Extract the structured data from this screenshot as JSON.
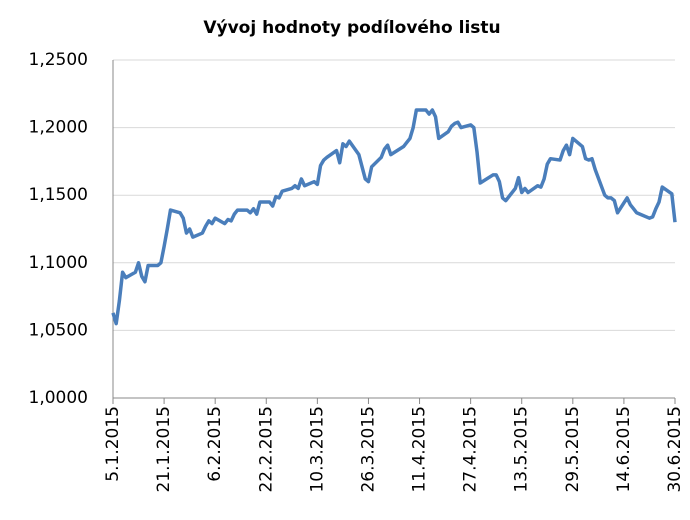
{
  "chart_data": {
    "type": "line",
    "title": "Vývoj hodnoty podílového listu",
    "x": [
      "2015-01-05",
      "2015-01-06",
      "2015-01-07",
      "2015-01-08",
      "2015-01-09",
      "2015-01-12",
      "2015-01-13",
      "2015-01-14",
      "2015-01-15",
      "2015-01-16",
      "2015-01-19",
      "2015-01-20",
      "2015-01-21",
      "2015-01-22",
      "2015-01-23",
      "2015-01-26",
      "2015-01-27",
      "2015-01-28",
      "2015-01-29",
      "2015-01-30",
      "2015-02-02",
      "2015-02-03",
      "2015-02-04",
      "2015-02-05",
      "2015-02-06",
      "2015-02-09",
      "2015-02-10",
      "2015-02-11",
      "2015-02-12",
      "2015-02-13",
      "2015-02-16",
      "2015-02-17",
      "2015-02-18",
      "2015-02-19",
      "2015-02-20",
      "2015-02-23",
      "2015-02-24",
      "2015-02-25",
      "2015-02-26",
      "2015-02-27",
      "2015-03-02",
      "2015-03-03",
      "2015-03-04",
      "2015-03-05",
      "2015-03-06",
      "2015-03-09",
      "2015-03-10",
      "2015-03-11",
      "2015-03-12",
      "2015-03-13",
      "2015-03-16",
      "2015-03-17",
      "2015-03-18",
      "2015-03-19",
      "2015-03-20",
      "2015-03-23",
      "2015-03-24",
      "2015-03-25",
      "2015-03-26",
      "2015-03-27",
      "2015-03-30",
      "2015-03-31",
      "2015-04-01",
      "2015-04-02",
      "2015-04-06",
      "2015-04-07",
      "2015-04-08",
      "2015-04-09",
      "2015-04-10",
      "2015-04-13",
      "2015-04-14",
      "2015-04-15",
      "2015-04-16",
      "2015-04-17",
      "2015-04-20",
      "2015-04-21",
      "2015-04-22",
      "2015-04-23",
      "2015-04-24",
      "2015-04-27",
      "2015-04-28",
      "2015-04-29",
      "2015-04-30",
      "2015-05-04",
      "2015-05-05",
      "2015-05-06",
      "2015-05-07",
      "2015-05-08",
      "2015-05-11",
      "2015-05-12",
      "2015-05-13",
      "2015-05-14",
      "2015-05-15",
      "2015-05-18",
      "2015-05-19",
      "2015-05-20",
      "2015-05-21",
      "2015-05-22",
      "2015-05-25",
      "2015-05-26",
      "2015-05-27",
      "2015-05-28",
      "2015-05-29",
      "2015-06-01",
      "2015-06-02",
      "2015-06-03",
      "2015-06-04",
      "2015-06-05",
      "2015-06-08",
      "2015-06-09",
      "2015-06-10",
      "2015-06-11",
      "2015-06-12",
      "2015-06-15",
      "2015-06-16",
      "2015-06-17",
      "2015-06-18",
      "2015-06-19",
      "2015-06-22",
      "2015-06-23",
      "2015-06-24",
      "2015-06-25",
      "2015-06-26",
      "2015-06-29",
      "2015-06-30"
    ],
    "series": [
      {
        "color": "#4a7ebb",
        "values": [
          1.063,
          1.055,
          1.072,
          1.093,
          1.089,
          1.093,
          1.1,
          1.09,
          1.086,
          1.098,
          1.098,
          1.1,
          1.112,
          1.125,
          1.139,
          1.137,
          1.133,
          1.122,
          1.125,
          1.119,
          1.122,
          1.127,
          1.131,
          1.129,
          1.133,
          1.129,
          1.132,
          1.131,
          1.136,
          1.139,
          1.139,
          1.137,
          1.14,
          1.136,
          1.145,
          1.145,
          1.142,
          1.149,
          1.148,
          1.153,
          1.155,
          1.157,
          1.155,
          1.162,
          1.157,
          1.16,
          1.158,
          1.172,
          1.176,
          1.178,
          1.183,
          1.174,
          1.188,
          1.186,
          1.19,
          1.18,
          1.171,
          1.162,
          1.16,
          1.171,
          1.178,
          1.184,
          1.187,
          1.18,
          1.186,
          1.189,
          1.192,
          1.2,
          1.213,
          1.213,
          1.21,
          1.213,
          1.208,
          1.192,
          1.197,
          1.201,
          1.203,
          1.204,
          1.2,
          1.202,
          1.2,
          1.182,
          1.159,
          1.165,
          1.165,
          1.16,
          1.148,
          1.146,
          1.155,
          1.163,
          1.152,
          1.155,
          1.152,
          1.157,
          1.156,
          1.162,
          1.173,
          1.177,
          1.176,
          1.183,
          1.187,
          1.18,
          1.192,
          1.186,
          1.177,
          1.176,
          1.177,
          1.169,
          1.15,
          1.148,
          1.148,
          1.146,
          1.137,
          1.148,
          1.143,
          1.14,
          1.137,
          1.136,
          1.133,
          1.134,
          1.14,
          1.145,
          1.156,
          1.151,
          1.13
        ]
      }
    ],
    "ylim": [
      1.0,
      1.25
    ],
    "yticks": [
      {
        "value": 1.0,
        "label": "1,0000"
      },
      {
        "value": 1.05,
        "label": "1,0500"
      },
      {
        "value": 1.1,
        "label": "1,1000"
      },
      {
        "value": 1.15,
        "label": "1,1500"
      },
      {
        "value": 1.2,
        "label": "1,2000"
      },
      {
        "value": 1.25,
        "label": "1,2500"
      }
    ],
    "xlim": [
      "2015-01-05",
      "2015-06-30"
    ],
    "xticks": [
      {
        "value": "2015-01-05",
        "label": "5.1.2015"
      },
      {
        "value": "2015-01-21",
        "label": "21.1.2015"
      },
      {
        "value": "2015-02-06",
        "label": "6.2.2015"
      },
      {
        "value": "2015-02-22",
        "label": "22.2.2015"
      },
      {
        "value": "2015-03-10",
        "label": "10.3.2015"
      },
      {
        "value": "2015-03-26",
        "label": "26.3.2015"
      },
      {
        "value": "2015-04-11",
        "label": "11.4.2015"
      },
      {
        "value": "2015-04-27",
        "label": "27.4.2015"
      },
      {
        "value": "2015-05-13",
        "label": "13.5.2015"
      },
      {
        "value": "2015-05-29",
        "label": "29.5.2015"
      },
      {
        "value": "2015-06-14",
        "label": "14.6.2015"
      },
      {
        "value": "2015-06-30",
        "label": "30.6.2015"
      }
    ],
    "grid": true
  }
}
